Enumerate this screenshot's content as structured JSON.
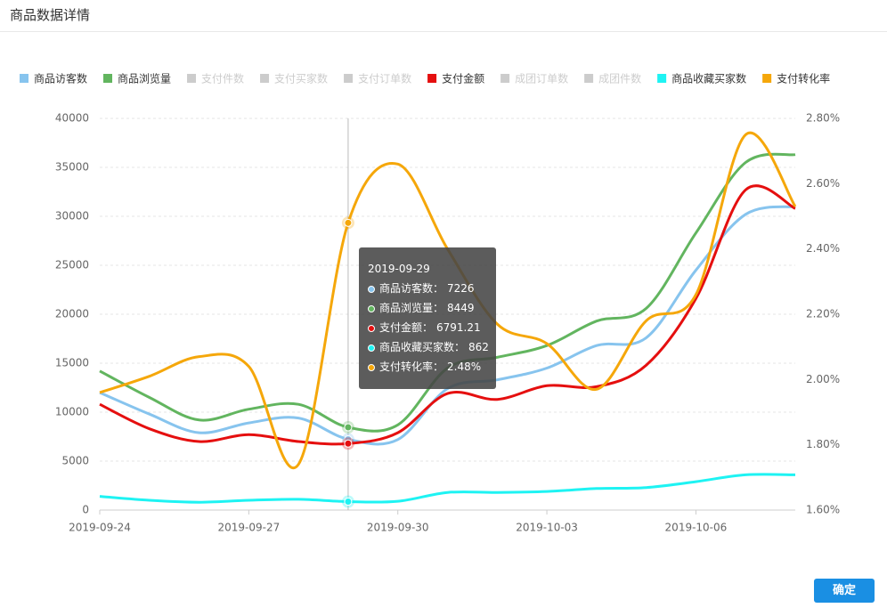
{
  "header": {
    "title": "商品数据详情"
  },
  "button": {
    "label": "确定"
  },
  "chart_data": {
    "type": "line",
    "categories": [
      "2019-09-24",
      null,
      null,
      "2019-09-27",
      null,
      null,
      "2019-09-30",
      null,
      null,
      "2019-10-03",
      null,
      null,
      "2019-10-06",
      null,
      null
    ],
    "ylim": [
      0,
      40000
    ],
    "yticks": [
      0,
      5000,
      10000,
      15000,
      20000,
      25000,
      30000,
      35000,
      40000
    ],
    "y2lim": [
      1.6,
      2.8
    ],
    "y2ticks": [
      {
        "value": 1.6,
        "label": "1.60%"
      },
      {
        "value": 1.8,
        "label": "1.80%"
      },
      {
        "value": 2.0,
        "label": "2.00%"
      },
      {
        "value": 2.2,
        "label": "2.20%"
      },
      {
        "value": 2.4,
        "label": "2.40%"
      },
      {
        "value": 2.6,
        "label": "2.60%"
      },
      {
        "value": 2.8,
        "label": "2.80%"
      }
    ],
    "grid": true,
    "legend": "top",
    "series": [
      {
        "name": "商品访客数",
        "color": "#87c4ee",
        "values": [
          12000,
          9800,
          7900,
          8900,
          9400,
          7226,
          7200,
          12400,
          13300,
          14500,
          16800,
          17600,
          24500,
          30200,
          31000
        ]
      },
      {
        "name": "商品浏览量",
        "color": "#62b55f",
        "values": [
          14200,
          11500,
          9200,
          10300,
          10800,
          8449,
          8700,
          14500,
          15600,
          16800,
          19300,
          20600,
          28300,
          35500,
          36300
        ]
      },
      {
        "name": "支付件数",
        "color": "#cccccc",
        "selected": false
      },
      {
        "name": "支付买家数",
        "color": "#cccccc",
        "selected": false
      },
      {
        "name": "支付订单数",
        "color": "#cccccc",
        "selected": false
      },
      {
        "name": "支付金额",
        "color": "#e50f0f",
        "values": [
          10800,
          8300,
          7000,
          7700,
          7000,
          6791.21,
          7900,
          11900,
          11300,
          12700,
          12600,
          14800,
          21600,
          32700,
          30800
        ]
      },
      {
        "name": "成团订单数",
        "color": "#cccccc",
        "selected": false
      },
      {
        "name": "成团件数",
        "color": "#cccccc",
        "selected": false
      },
      {
        "name": "商品收藏买家数",
        "color": "#1ef3f3",
        "values": [
          1400,
          1000,
          800,
          1000,
          1100,
          862,
          900,
          1800,
          1800,
          1900,
          2200,
          2300,
          2900,
          3600,
          3600
        ]
      },
      {
        "name": "支付转化率",
        "color": "#f5a70a",
        "axis": "y2",
        "values": [
          1.96,
          2.01,
          2.07,
          2.04,
          1.74,
          2.48,
          2.66,
          2.4,
          2.17,
          2.11,
          1.97,
          2.18,
          2.26,
          2.75,
          2.53
        ]
      }
    ],
    "tooltip": {
      "title": "2019-09-29",
      "rows": [
        {
          "name": "商品访客数：",
          "value": "7226",
          "color": "#87c4ee"
        },
        {
          "name": "商品浏览量：",
          "value": "8449",
          "color": "#62b55f"
        },
        {
          "name": "支付金额：",
          "value": "6791.21",
          "color": "#e50f0f"
        },
        {
          "name": "商品收藏买家数：",
          "value": "862",
          "color": "#1ef3f3"
        },
        {
          "name": "支付转化率：",
          "value": "2.48%",
          "color": "#f5a70a"
        }
      ]
    }
  }
}
